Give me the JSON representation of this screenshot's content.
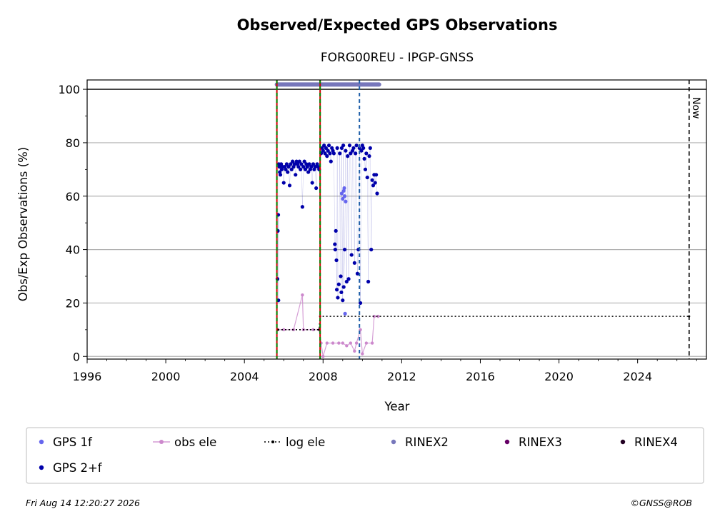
{
  "chart_data": {
    "type": "scatter",
    "title": "Observed/Expected GPS Observations",
    "subtitle": "FORG00REU - IPGP-GNSS",
    "xlabel": "Year",
    "ylabel": "Obs/Exp Observations (%)",
    "xlim": [
      1996.0,
      2027.5
    ],
    "ylim": [
      -1,
      103.5
    ],
    "xticks": [
      1996,
      2000,
      2004,
      2008,
      2012,
      2016,
      2020,
      2024
    ],
    "yticks": [
      0,
      20,
      40,
      60,
      80,
      100
    ],
    "grid": "horizontal",
    "legend_position": "bottom",
    "legend": [
      {
        "label": "GPS 1f",
        "marker": "dot",
        "color": "#6666ee"
      },
      {
        "label": "obs ele",
        "marker": "line-dot",
        "color": "#cc88cc"
      },
      {
        "label": "log ele",
        "marker": "dotted-line",
        "color": "#000000"
      },
      {
        "label": "RINEX2",
        "marker": "dot",
        "color": "#7777bb"
      },
      {
        "label": "RINEX3",
        "marker": "dot",
        "color": "#660066"
      },
      {
        "label": "RINEX4",
        "marker": "dot",
        "color": "#220022"
      },
      {
        "label": "GPS 2+f",
        "marker": "dot",
        "color": "#0000aa"
      }
    ],
    "event_lines": [
      {
        "x": 2005.65,
        "style": "red-green-dashed"
      },
      {
        "x": 2007.85,
        "style": "red-green-dashed"
      },
      {
        "x": 2009.85,
        "style": "blue-dashed"
      }
    ],
    "now": {
      "x": 2026.62,
      "label": "Now"
    },
    "reference_line": {
      "y": 100
    },
    "rinex2_span": {
      "x": [
        2005.65,
        2010.85
      ],
      "y": 101.8
    },
    "series": [
      {
        "name": "GPS 2+f",
        "color": "#0000aa",
        "points": [
          [
            2005.68,
            29
          ],
          [
            2005.7,
            47
          ],
          [
            2005.72,
            53
          ],
          [
            2005.73,
            21
          ],
          [
            2005.75,
            72
          ],
          [
            2005.78,
            71
          ],
          [
            2005.8,
            69
          ],
          [
            2005.83,
            68
          ],
          [
            2005.87,
            72
          ],
          [
            2005.9,
            70
          ],
          [
            2005.95,
            71
          ],
          [
            2006.0,
            65
          ],
          [
            2006.05,
            71
          ],
          [
            2006.1,
            70
          ],
          [
            2006.15,
            72
          ],
          [
            2006.2,
            69
          ],
          [
            2006.25,
            71
          ],
          [
            2006.3,
            64
          ],
          [
            2006.35,
            72
          ],
          [
            2006.4,
            70
          ],
          [
            2006.45,
            73
          ],
          [
            2006.5,
            71
          ],
          [
            2006.55,
            72
          ],
          [
            2006.6,
            68
          ],
          [
            2006.65,
            73
          ],
          [
            2006.7,
            72
          ],
          [
            2006.75,
            71
          ],
          [
            2006.8,
            73
          ],
          [
            2006.85,
            70
          ],
          [
            2006.9,
            72
          ],
          [
            2006.95,
            56
          ],
          [
            2007.0,
            71
          ],
          [
            2007.05,
            73
          ],
          [
            2007.1,
            70
          ],
          [
            2007.15,
            72
          ],
          [
            2007.2,
            71
          ],
          [
            2007.25,
            69
          ],
          [
            2007.3,
            72
          ],
          [
            2007.35,
            70
          ],
          [
            2007.4,
            71
          ],
          [
            2007.45,
            65
          ],
          [
            2007.5,
            72
          ],
          [
            2007.55,
            70
          ],
          [
            2007.6,
            71
          ],
          [
            2007.65,
            63
          ],
          [
            2007.7,
            72
          ],
          [
            2007.75,
            71
          ],
          [
            2007.8,
            70
          ],
          [
            2007.9,
            76
          ],
          [
            2007.95,
            78
          ],
          [
            2008.0,
            77
          ],
          [
            2008.05,
            79
          ],
          [
            2008.1,
            76
          ],
          [
            2008.15,
            78
          ],
          [
            2008.2,
            75
          ],
          [
            2008.25,
            77
          ],
          [
            2008.3,
            79
          ],
          [
            2008.35,
            76
          ],
          [
            2008.4,
            73
          ],
          [
            2008.45,
            78
          ],
          [
            2008.5,
            77
          ],
          [
            2008.55,
            76
          ],
          [
            2008.6,
            42
          ],
          [
            2008.62,
            40
          ],
          [
            2008.65,
            47
          ],
          [
            2008.68,
            36
          ],
          [
            2008.7,
            25
          ],
          [
            2008.72,
            78
          ],
          [
            2008.75,
            22
          ],
          [
            2008.8,
            27
          ],
          [
            2008.85,
            76
          ],
          [
            2008.9,
            30
          ],
          [
            2008.93,
            24
          ],
          [
            2008.95,
            78
          ],
          [
            2009.0,
            21
          ],
          [
            2009.03,
            79
          ],
          [
            2009.05,
            26
          ],
          [
            2009.1,
            40
          ],
          [
            2009.15,
            77
          ],
          [
            2009.2,
            28
          ],
          [
            2009.25,
            75
          ],
          [
            2009.3,
            29
          ],
          [
            2009.35,
            79
          ],
          [
            2009.4,
            76
          ],
          [
            2009.45,
            38
          ],
          [
            2009.5,
            77
          ],
          [
            2009.55,
            78
          ],
          [
            2009.6,
            35
          ],
          [
            2009.65,
            76
          ],
          [
            2009.7,
            79
          ],
          [
            2009.75,
            31
          ],
          [
            2009.8,
            40
          ],
          [
            2009.85,
            78
          ],
          [
            2009.9,
            20
          ],
          [
            2009.95,
            77
          ],
          [
            2010.0,
            79
          ],
          [
            2010.05,
            78
          ],
          [
            2010.1,
            74
          ],
          [
            2010.15,
            70
          ],
          [
            2010.2,
            76
          ],
          [
            2010.25,
            67
          ],
          [
            2010.3,
            28
          ],
          [
            2010.35,
            75
          ],
          [
            2010.4,
            78
          ],
          [
            2010.45,
            40
          ],
          [
            2010.5,
            66
          ],
          [
            2010.55,
            64
          ],
          [
            2010.6,
            68
          ],
          [
            2010.65,
            65
          ],
          [
            2010.7,
            68
          ],
          [
            2010.75,
            61
          ]
        ]
      },
      {
        "name": "GPS 1f",
        "color": "#6666ee",
        "points": [
          [
            2008.95,
            61
          ],
          [
            2009.0,
            59
          ],
          [
            2009.05,
            62
          ],
          [
            2009.1,
            60
          ],
          [
            2009.15,
            58
          ],
          [
            2009.08,
            63
          ],
          [
            2009.12,
            16
          ]
        ]
      },
      {
        "name": "obs ele",
        "color": "#cc88cc",
        "points": [
          [
            2005.7,
            10
          ],
          [
            2006.0,
            10
          ],
          [
            2006.5,
            10
          ],
          [
            2006.95,
            23
          ],
          [
            2007.0,
            10
          ],
          [
            2007.5,
            10
          ],
          [
            2007.8,
            10
          ],
          [
            2007.9,
            5
          ],
          [
            2008.0,
            0
          ],
          [
            2008.2,
            5
          ],
          [
            2008.5,
            5
          ],
          [
            2008.8,
            5
          ],
          [
            2009.0,
            5
          ],
          [
            2009.2,
            4
          ],
          [
            2009.4,
            5
          ],
          [
            2009.6,
            2
          ],
          [
            2009.7,
            5
          ],
          [
            2009.9,
            10
          ],
          [
            2010.0,
            1
          ],
          [
            2010.2,
            5
          ],
          [
            2010.5,
            5
          ],
          [
            2010.6,
            15
          ],
          [
            2010.8,
            15
          ]
        ]
      },
      {
        "name": "log ele",
        "color": "#000000",
        "points": [
          [
            2005.7,
            10
          ],
          [
            2007.8,
            10
          ],
          [
            2007.85,
            15
          ],
          [
            2026.62,
            15
          ]
        ]
      }
    ]
  },
  "footer": {
    "timestamp": "Fri Aug 14 12:20:27 2026",
    "credit": "©GNSS@ROB"
  }
}
